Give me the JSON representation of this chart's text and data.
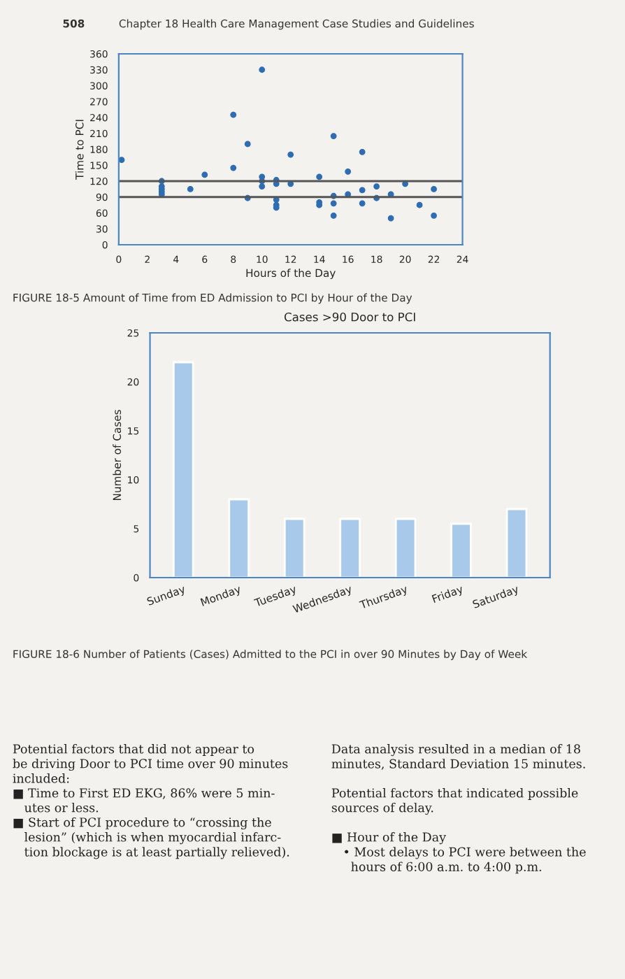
{
  "chart_data": [
    {
      "type": "scatter",
      "xlabel": "Hours of the Day",
      "ylabel": "Time to PCI",
      "marker": "circle",
      "grid": false,
      "legend": false,
      "x": [
        0.2,
        3,
        3,
        3,
        3,
        3,
        5,
        6,
        8,
        8,
        9,
        9,
        10,
        10,
        10,
        10,
        11,
        11,
        11,
        11,
        11,
        12,
        12,
        14,
        14,
        14,
        15,
        15,
        15,
        15,
        16,
        16,
        17,
        17,
        17,
        18,
        18,
        19,
        19,
        20,
        21,
        22,
        22
      ],
      "series": [
        {
          "color": "#2f6db3",
          "values": [
            160,
            120,
            110,
            105,
            100,
            95,
            105,
            132,
            245,
            145,
            190,
            88,
            330,
            128,
            120,
            110,
            122,
            115,
            85,
            75,
            70,
            170,
            115,
            128,
            80,
            75,
            205,
            92,
            78,
            55,
            138,
            95,
            175,
            103,
            78,
            110,
            88,
            95,
            50,
            115,
            75,
            105,
            55
          ]
        }
      ],
      "xlim": [
        0,
        24
      ],
      "xticks": [
        0,
        2,
        4,
        6,
        8,
        10,
        12,
        14,
        16,
        18,
        20,
        22,
        24
      ],
      "ylim": [
        0,
        360
      ],
      "yticks": [
        0,
        30,
        60,
        90,
        120,
        150,
        180,
        210,
        240,
        270,
        300,
        330,
        360
      ],
      "ref_lines": [
        {
          "axis": "y",
          "value": 120,
          "color": "#555555"
        },
        {
          "axis": "y",
          "value": 90,
          "color": "#555555"
        }
      ],
      "annotations": [
        "508",
        "Chapter 18 Health Care Management Case Studies and Guidelines",
        "FIGURE 18-5 Amount of Time from ED Admission to PCI by Hour of the Day"
      ]
    },
    {
      "type": "bar",
      "title": "Cases >90 Door to PCI",
      "ylabel": "Number of Cases",
      "grid": false,
      "legend": false,
      "categories": [
        "Sunday",
        "Monday",
        "Tuesday",
        "Wednesday",
        "Thursday",
        "Friday",
        "Saturday"
      ],
      "series": [
        {
          "color": "#a9c9ea",
          "values": [
            22,
            8,
            6,
            6,
            6,
            5.5,
            7
          ]
        }
      ],
      "ylim": [
        0,
        25
      ],
      "yticks": [
        0,
        5,
        10,
        15,
        20,
        25
      ],
      "annotations": [
        "FIGURE 18-6 Number of Patients (Cases) Admitted to the PCI in over 90 Minutes by Day of Week",
        "Potential factors that did not appear to\nbe driving Door to PCI time over 90 minutes\nincluded:\n■ Time to First ED EKG, 86% were 5 min-\n   utes or less.\n■ Start of PCI procedure to “crossing the\n   lesion” (which is when myocardial infarc-\n   tion blockage is at least partially relieved).",
        "Data analysis resulted in a median of 18\nminutes, Standard Deviation 15 minutes.\n\nPotential factors that indicated possible\nsources of delay.\n\n■ Hour of the Day\n   • Most delays to PCI were between the\n     hours of 6:00 a.m. to 4:00 p.m."
      ]
    }
  ]
}
